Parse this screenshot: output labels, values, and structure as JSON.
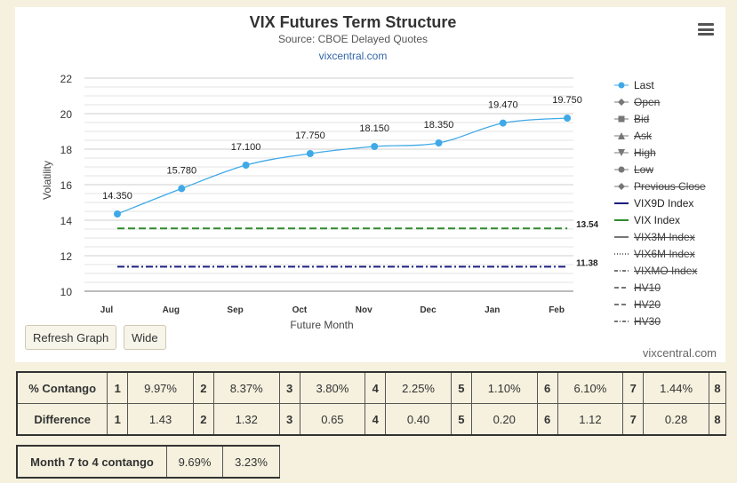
{
  "chart_data": {
    "type": "line",
    "title": "VIX Futures Term Structure",
    "subtitle": "Source: CBOE Delayed Quotes",
    "source_link": "vixcentral.com",
    "xlabel": "Future Month",
    "ylabel": "Volatility",
    "categories": [
      "Jul",
      "Aug",
      "Sep",
      "Oct",
      "Nov",
      "Dec",
      "Jan",
      "Feb"
    ],
    "ylim": [
      10,
      22
    ],
    "yticks": [
      "10",
      "12",
      "14",
      "16",
      "18",
      "20",
      "22"
    ],
    "grid": true,
    "legend_position": "right",
    "series": [
      {
        "name": "Last",
        "values": [
          14.35,
          15.78,
          17.1,
          17.75,
          18.15,
          18.35,
          19.47,
          19.75
        ],
        "labels": [
          "14.350",
          "15.780",
          "17.100",
          "17.750",
          "18.150",
          "18.350",
          "19.470",
          "19.750"
        ],
        "color": "#3fa9e8"
      },
      {
        "name": "VIX Index",
        "value": 13.54,
        "label": "13.54",
        "color": "#2e8b2e"
      },
      {
        "name": "VIX9D Index",
        "value": 11.38,
        "label": "11.38",
        "color": "#1c1c80"
      }
    ],
    "legend": [
      {
        "name": "Last",
        "marker": "circle-icon",
        "enabled": true,
        "color": "#3fa9e8"
      },
      {
        "name": "Open",
        "marker": "diamond-icon",
        "enabled": false,
        "color": "#777777"
      },
      {
        "name": "Bid",
        "marker": "square-icon",
        "enabled": false,
        "color": "#777777"
      },
      {
        "name": "Ask",
        "marker": "triangle-icon",
        "enabled": false,
        "color": "#777777"
      },
      {
        "name": "High",
        "marker": "triangle-down-icon",
        "enabled": false,
        "color": "#777777"
      },
      {
        "name": "Low",
        "marker": "circle-icon",
        "enabled": false,
        "color": "#777777"
      },
      {
        "name": "Previous Close",
        "marker": "diamond-icon",
        "enabled": false,
        "color": "#777777"
      },
      {
        "name": "VIX9D Index",
        "marker": "solid-line-icon",
        "enabled": true,
        "color": "#1c1c80"
      },
      {
        "name": "VIX Index",
        "marker": "solid-line-icon",
        "enabled": true,
        "color": "#2e8b2e"
      },
      {
        "name": "VIX3M Index",
        "marker": "solid-line-icon",
        "enabled": false,
        "color": "#777777"
      },
      {
        "name": "VIX6M Index",
        "marker": "dotted-line-icon",
        "enabled": false,
        "color": "#777777"
      },
      {
        "name": "VIXMO Index",
        "marker": "dash-dot-line-icon",
        "enabled": false,
        "color": "#777777"
      },
      {
        "name": "HV10",
        "marker": "dashed-line-icon",
        "enabled": false,
        "color": "#777777"
      },
      {
        "name": "HV20",
        "marker": "dashed-line-icon",
        "enabled": false,
        "color": "#777777"
      },
      {
        "name": "HV30",
        "marker": "dash-dot-line-icon",
        "enabled": false,
        "color": "#777777"
      }
    ]
  },
  "controls": {
    "refresh_label": "Refresh Graph",
    "wide_label": "Wide",
    "menu_icon": "hamburger-menu-icon",
    "watermark": "vixcentral.com"
  },
  "contango_table": {
    "rows": [
      {
        "label": "% Contango",
        "cells": [
          "1",
          "9.97%",
          "2",
          "8.37%",
          "3",
          "3.80%",
          "4",
          "2.25%",
          "5",
          "1.10%",
          "6",
          "6.10%",
          "7",
          "1.44%",
          "8"
        ]
      },
      {
        "label": "Difference",
        "cells": [
          "1",
          "1.43",
          "2",
          "1.32",
          "3",
          "0.65",
          "4",
          "0.40",
          "5",
          "0.20",
          "6",
          "1.12",
          "7",
          "0.28",
          "8"
        ]
      }
    ]
  },
  "month_table": {
    "label": "Month 7 to 4 contango",
    "values": [
      "9.69%",
      "3.23%"
    ]
  }
}
